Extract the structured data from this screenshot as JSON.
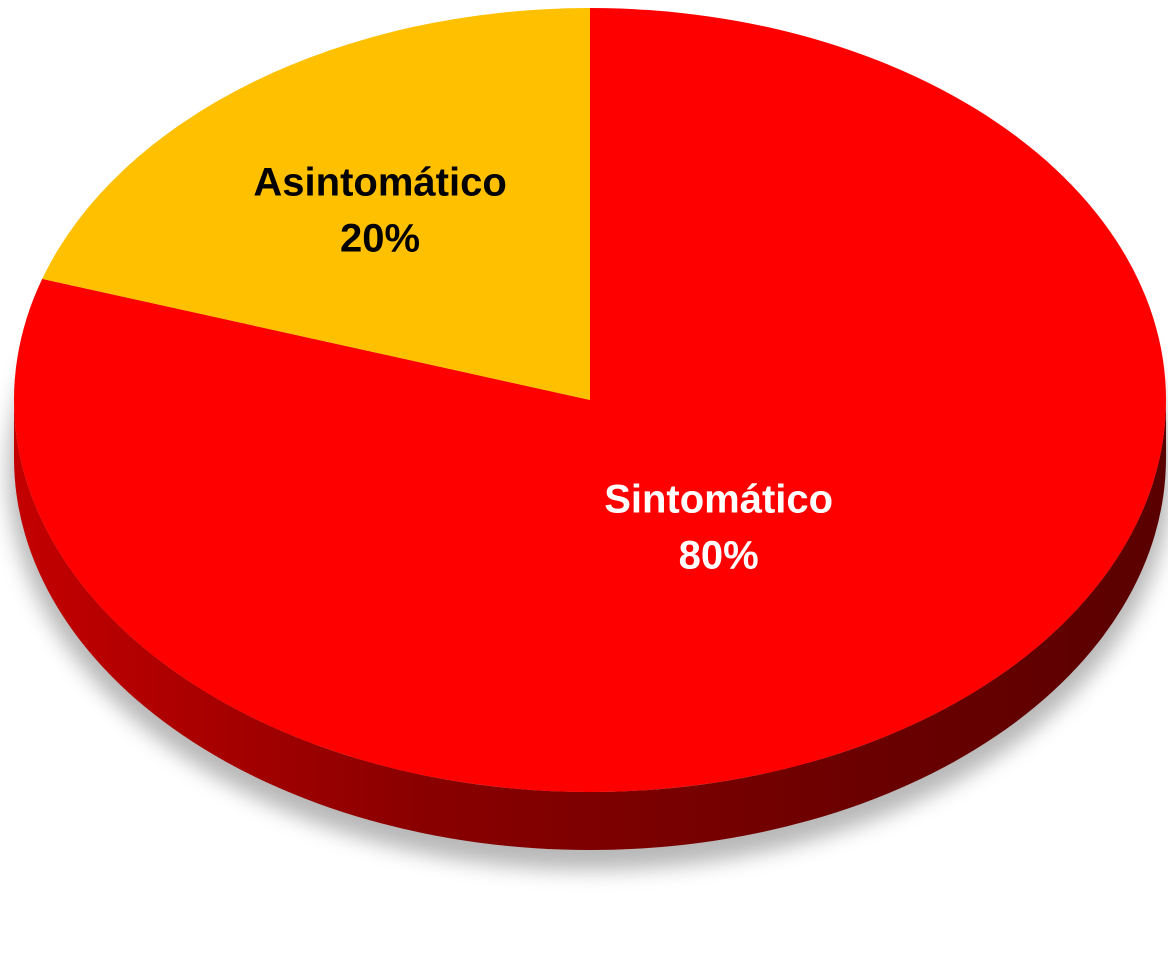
{
  "chart_data": {
    "type": "pie",
    "style": "3d",
    "title": "",
    "slices": [
      {
        "label": "Sintomático",
        "value": 80,
        "display": "80%",
        "color": "#ff0000",
        "side_color": "#8b0000",
        "label_color": "#ffffff"
      },
      {
        "label": "Asintomático",
        "value": 20,
        "display": "20%",
        "color": "#ffc000",
        "side_color": "#b8860b",
        "label_color": "#000000"
      }
    ]
  }
}
